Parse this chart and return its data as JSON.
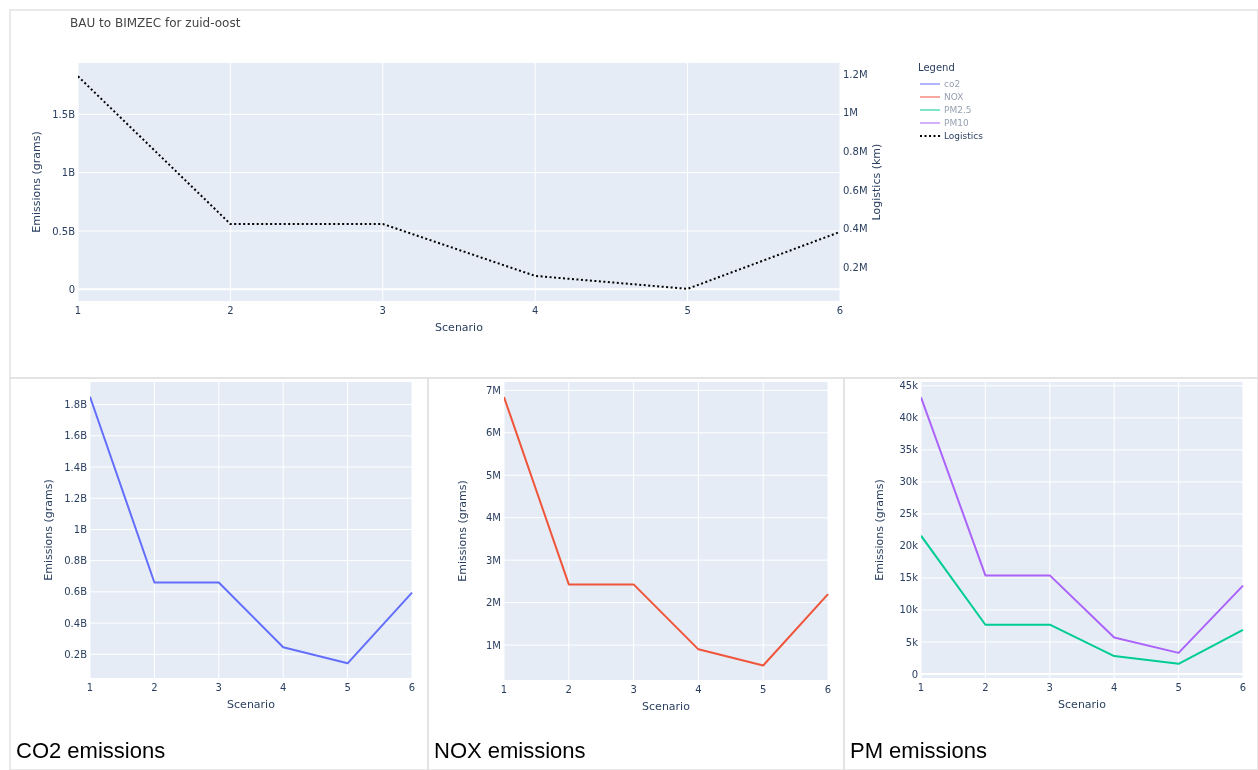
{
  "chart_data": [
    {
      "type": "line",
      "title": "BAU to BIMZEC for zuid-oost",
      "xlabel": "Scenario",
      "ylabel": "Emissions (grams)",
      "y2label": "Logistics (km)",
      "legend_title": "Legend",
      "legend": "top right",
      "grid": true,
      "x": [
        1,
        2,
        3,
        4,
        5,
        6
      ],
      "xlim": [
        1,
        6
      ],
      "xticks": [
        1,
        2,
        3,
        4,
        5,
        6
      ],
      "ylim": [
        -100000000,
        1940000000
      ],
      "yticks": [
        0,
        {
          "value": 500000000,
          "label": "0.5B"
        },
        {
          "value": 1000000000,
          "label": "1B"
        },
        {
          "value": 1500000000,
          "label": "1.5B"
        }
      ],
      "y2lim": [
        26000,
        1259000
      ],
      "y2ticks": [
        {
          "value": 200000,
          "label": "0.2M"
        },
        {
          "value": 400000,
          "label": "0.4M"
        },
        {
          "value": 600000,
          "label": "0.6M"
        },
        {
          "value": 800000,
          "label": "0.8M"
        },
        {
          "value": 1000000,
          "label": "1M"
        },
        {
          "value": 1200000,
          "label": "1.2M"
        }
      ],
      "series": [
        {
          "name": "co2",
          "color": "#636efa",
          "values": [
            null,
            null,
            null,
            null,
            null,
            null
          ]
        },
        {
          "name": "NOX",
          "color": "#ef553b",
          "values": [
            null,
            null,
            null,
            null,
            null,
            null
          ]
        },
        {
          "name": "PM2.5",
          "color": "#00cc96",
          "values": [
            null,
            null,
            null,
            null,
            null,
            null
          ]
        },
        {
          "name": "PM10",
          "color": "#ab63fa",
          "values": [
            null,
            null,
            null,
            null,
            null,
            null
          ]
        },
        {
          "name": "Logistics",
          "color": "#000000",
          "axis": "y2",
          "line_style": "dotted",
          "values": [
            1190000,
            425000,
            425000,
            156000,
            89000,
            384000
          ]
        }
      ]
    },
    {
      "type": "line",
      "xlabel": "Scenario",
      "ylabel": "Emissions (grams)",
      "grid": true,
      "annotations": [
        "CO2 emissions"
      ],
      "x": [
        1,
        2,
        3,
        4,
        5,
        6
      ],
      "xlim": [
        1,
        6
      ],
      "xticks": [
        1,
        2,
        3,
        4,
        5,
        6
      ],
      "ylim": [
        48000000,
        1945000000
      ],
      "yticks": [
        {
          "value": 200000000,
          "label": "0.2B"
        },
        {
          "value": 400000000,
          "label": "0.4B"
        },
        {
          "value": 600000000,
          "label": "0.6B"
        },
        {
          "value": 800000000,
          "label": "0.8B"
        },
        {
          "value": 1000000000,
          "label": "1B"
        },
        {
          "value": 1200000000,
          "label": "1.2B"
        },
        {
          "value": 1400000000,
          "label": "1.4B"
        },
        {
          "value": 1600000000,
          "label": "1.6B"
        },
        {
          "value": 1800000000,
          "label": "1.8B"
        }
      ],
      "series": [
        {
          "color": "#636efa",
          "values": [
            1850000000,
            660000000,
            660000000,
            245000000,
            142000000,
            595000000
          ]
        }
      ]
    },
    {
      "type": "line",
      "xlabel": "Scenario",
      "ylabel": "Emissions (grams)",
      "grid": true,
      "annotations": [
        "NOX emissions"
      ],
      "x": [
        1,
        2,
        3,
        4,
        5,
        6
      ],
      "xlim": [
        1,
        6
      ],
      "xticks": [
        1,
        2,
        3,
        4,
        5,
        6
      ],
      "ylim": [
        178000,
        7196000
      ],
      "yticks": [
        {
          "value": 1000000,
          "label": "1M"
        },
        {
          "value": 2000000,
          "label": "2M"
        },
        {
          "value": 3000000,
          "label": "3M"
        },
        {
          "value": 4000000,
          "label": "4M"
        },
        {
          "value": 5000000,
          "label": "5M"
        },
        {
          "value": 6000000,
          "label": "6M"
        },
        {
          "value": 7000000,
          "label": "7M"
        }
      ],
      "series": [
        {
          "color": "#ef553b",
          "values": [
            6840000,
            2430000,
            2430000,
            900000,
            520000,
            2200000
          ]
        }
      ]
    },
    {
      "type": "line",
      "xlabel": "Scenario",
      "ylabel": "Emissions (grams)",
      "grid": true,
      "annotations": [
        "PM emissions"
      ],
      "x": [
        1,
        2,
        3,
        4,
        5,
        6
      ],
      "xlim": [
        1,
        6
      ],
      "xticks": [
        1,
        2,
        3,
        4,
        5,
        6
      ],
      "ylim": [
        -620,
        45600
      ],
      "yticks": [
        0,
        {
          "value": 5000,
          "label": "5k"
        },
        {
          "value": 10000,
          "label": "10k"
        },
        {
          "value": 15000,
          "label": "15k"
        },
        {
          "value": 20000,
          "label": "20k"
        },
        {
          "value": 25000,
          "label": "25k"
        },
        {
          "value": 30000,
          "label": "30k"
        },
        {
          "value": 35000,
          "label": "35k"
        },
        {
          "value": 40000,
          "label": "40k"
        },
        {
          "value": 45000,
          "label": "45k"
        }
      ],
      "series": [
        {
          "color": "#ab63fa",
          "values": [
            43200,
            15400,
            15400,
            5700,
            3300,
            13800
          ]
        },
        {
          "color": "#00cc96",
          "values": [
            21600,
            7700,
            7700,
            2800,
            1600,
            6900
          ]
        }
      ]
    }
  ]
}
